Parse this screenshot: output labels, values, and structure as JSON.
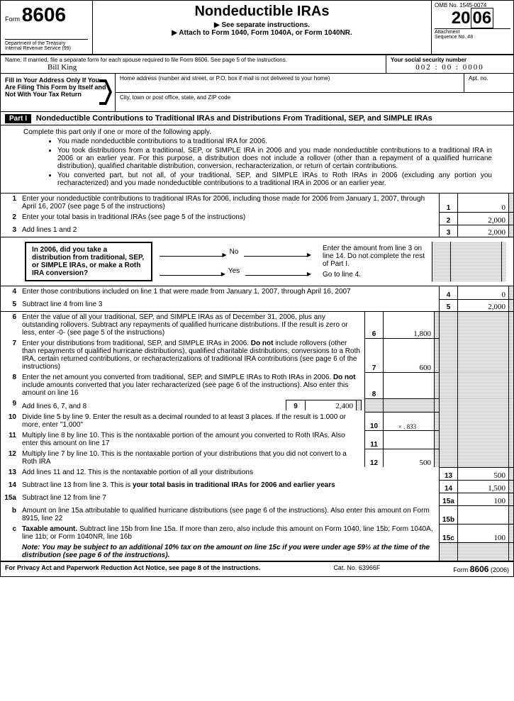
{
  "header": {
    "form_word": "Form",
    "form_number": "8606",
    "dept1": "Department of the Treasury",
    "dept2": "Internal Revenue Service   (99)",
    "title": "Nondeductible IRAs",
    "sub1": "▶ See separate instructions.",
    "sub2": "▶ Attach to Form 1040, Form 1040A, or Form 1040NR.",
    "omb": "OMB No. 1545-0074",
    "year_a": "20",
    "year_b": "06",
    "attach": "Attachment",
    "seq": "Sequence No. 48"
  },
  "name": {
    "label": "Name. If married, file a separate form for each spouse required to file Form 8606. See page 5 of the instructions.",
    "value": "Bill King",
    "ssn_label": "Your social security number",
    "ssn_value": "002 : 00 : 0000"
  },
  "addr": {
    "fill1": "Fill in Your Address Only If You Are Filing This Form by Itself and Not With Your Tax Return",
    "home": "Home address (number and street, or P.O. box if mail is not delivered to your home)",
    "apt": "Apt. no.",
    "city": "City, town or post office, state, and ZIP code"
  },
  "part1": {
    "badge": "Part I",
    "title": "Nondeductible Contributions to Traditional IRAs and Distributions From Traditional, SEP, and SIMPLE IRAs",
    "lead": "Complete this part only if one or more of the following apply.",
    "b1": "You made nondeductible contributions to a traditional IRA for 2006.",
    "b2": "You took distributions from a traditional, SEP, or SIMPLE IRA in 2006 and you made nondeductible contributions to a traditional IRA in 2006 or an earlier year. For this purpose, a distribution does not include a rollover (other than a repayment of a qualified hurricane distribution), qualified charitable distribution, conversion, recharacterization, or return of certain contributions.",
    "b3": "You converted part, but not all, of your traditional, SEP, and SIMPLE IRAs to Roth IRAs in 2006 (excluding any portion you recharacterized) and you made nondeductible contributions to a traditional IRA in 2006 or an earlier year."
  },
  "lines": {
    "l1": {
      "n": "1",
      "t": "Enter your nondeductible contributions to traditional IRAs for 2006, including those made for 2006 from January 1, 2007, through April 16, 2007 (see page 5 of the instructions)",
      "v": "0"
    },
    "l2": {
      "n": "2",
      "t": "Enter your total basis in traditional IRAs (see page 5 of the instructions)",
      "v": "2,000"
    },
    "l3": {
      "n": "3",
      "t": "Add lines 1 and 2",
      "v": "2,000"
    },
    "flow": {
      "box": "In 2006, did you take a distribution from traditional, SEP, or SIMPLE IRAs, or make a Roth IRA conversion?",
      "no": "No",
      "yes": "Yes",
      "no_txt": "Enter the amount from line 3 on line 14. Do not complete the rest of Part I.",
      "yes_txt": "Go to line 4."
    },
    "l4": {
      "n": "4",
      "t": "Enter those contributions included on line 1 that were made from January 1, 2007, through April 16, 2007",
      "v": "0"
    },
    "l5": {
      "n": "5",
      "t": "Subtract line 4 from line 3",
      "v": "2,000"
    },
    "l6": {
      "n": "6",
      "t": "Enter the value of all your traditional, SEP, and SIMPLE IRAs as of December 31, 2006, plus any outstanding rollovers. Subtract any repayments of qualified hurricane distributions. If the result is zero or less, enter -0- (see page 5 of the instructions)",
      "cn": "6",
      "v": "1,800"
    },
    "l7": {
      "n": "7",
      "t": "Enter your distributions from traditional, SEP, and SIMPLE IRAs in 2006. Do not include rollovers (other than repayments of qualified hurricane distributions), qualified charitable distributions, conversions to a Roth IRA, certain returned contributions, or recharacterizations of traditional IRA contributions (see page 6 of the instructions)",
      "cn": "7",
      "v": "600"
    },
    "l8": {
      "n": "8",
      "t": "Enter the net amount you converted from traditional, SEP, and SIMPLE IRAs to Roth IRAs in 2006. Do not include amounts converted that you later recharacterized (see page 6 of the instructions). Also enter this amount on line 16",
      "cn": "8",
      "v": ""
    },
    "l9": {
      "n": "9",
      "t": "Add lines 6, 7, and 8",
      "cn": "9",
      "v": "2,400"
    },
    "l10": {
      "n": "10",
      "t": "Divide line 5 by line 9. Enter the result as a decimal rounded to at least 3 places. If the result is 1.000 or more, enter \"1.000\"",
      "cn": "10",
      "v": "×     . 833"
    },
    "l11": {
      "n": "11",
      "t": "Multiply line 8 by line 10. This is the nontaxable portion of the amount you converted to Roth IRAs. Also enter this amount on line 17",
      "cn": "11",
      "v": ""
    },
    "l12": {
      "n": "12",
      "t": "Multiply line 7 by line 10. This is the nontaxable portion of your distributions that you did not convert to a Roth IRA",
      "cn": "12",
      "v": "500"
    },
    "l13": {
      "n": "13",
      "t": "Add lines 11 and 12. This is the nontaxable portion of all your distributions",
      "v": "500"
    },
    "l14": {
      "n": "14",
      "t": "Subtract line 13 from line 3. This is your total basis in traditional IRAs for 2006 and earlier years",
      "v": "1,500"
    },
    "l15a": {
      "n": "15a",
      "t": "Subtract line 12 from line 7",
      "v": "100"
    },
    "l15b": {
      "n": "b",
      "t": "Amount on line 15a attributable to qualified hurricane distributions (see page 6 of the instructions). Also enter this amount on Form 8915, line 22",
      "cn": "15b",
      "v": ""
    },
    "l15c": {
      "n": "c",
      "t": "Taxable amount. Subtract line 15b from line 15a. If more than zero, also include this amount on Form 1040, line 15b; Form 1040A, line 11b; or Form 1040NR, line 16b",
      "cn": "15c",
      "v": "100"
    },
    "note": "Note: You may be subject to an additional 10% tax on the amount on line 15c if you were under age 59½ at the time of the distribution (see page 6 of the instructions)."
  },
  "footer": {
    "l": "For Privacy Act and Paperwork Reduction Act Notice, see page 8 of the instructions.",
    "c": "Cat. No. 63966F",
    "r1": "Form",
    "r2": "8606",
    "r3": "(2006)"
  }
}
